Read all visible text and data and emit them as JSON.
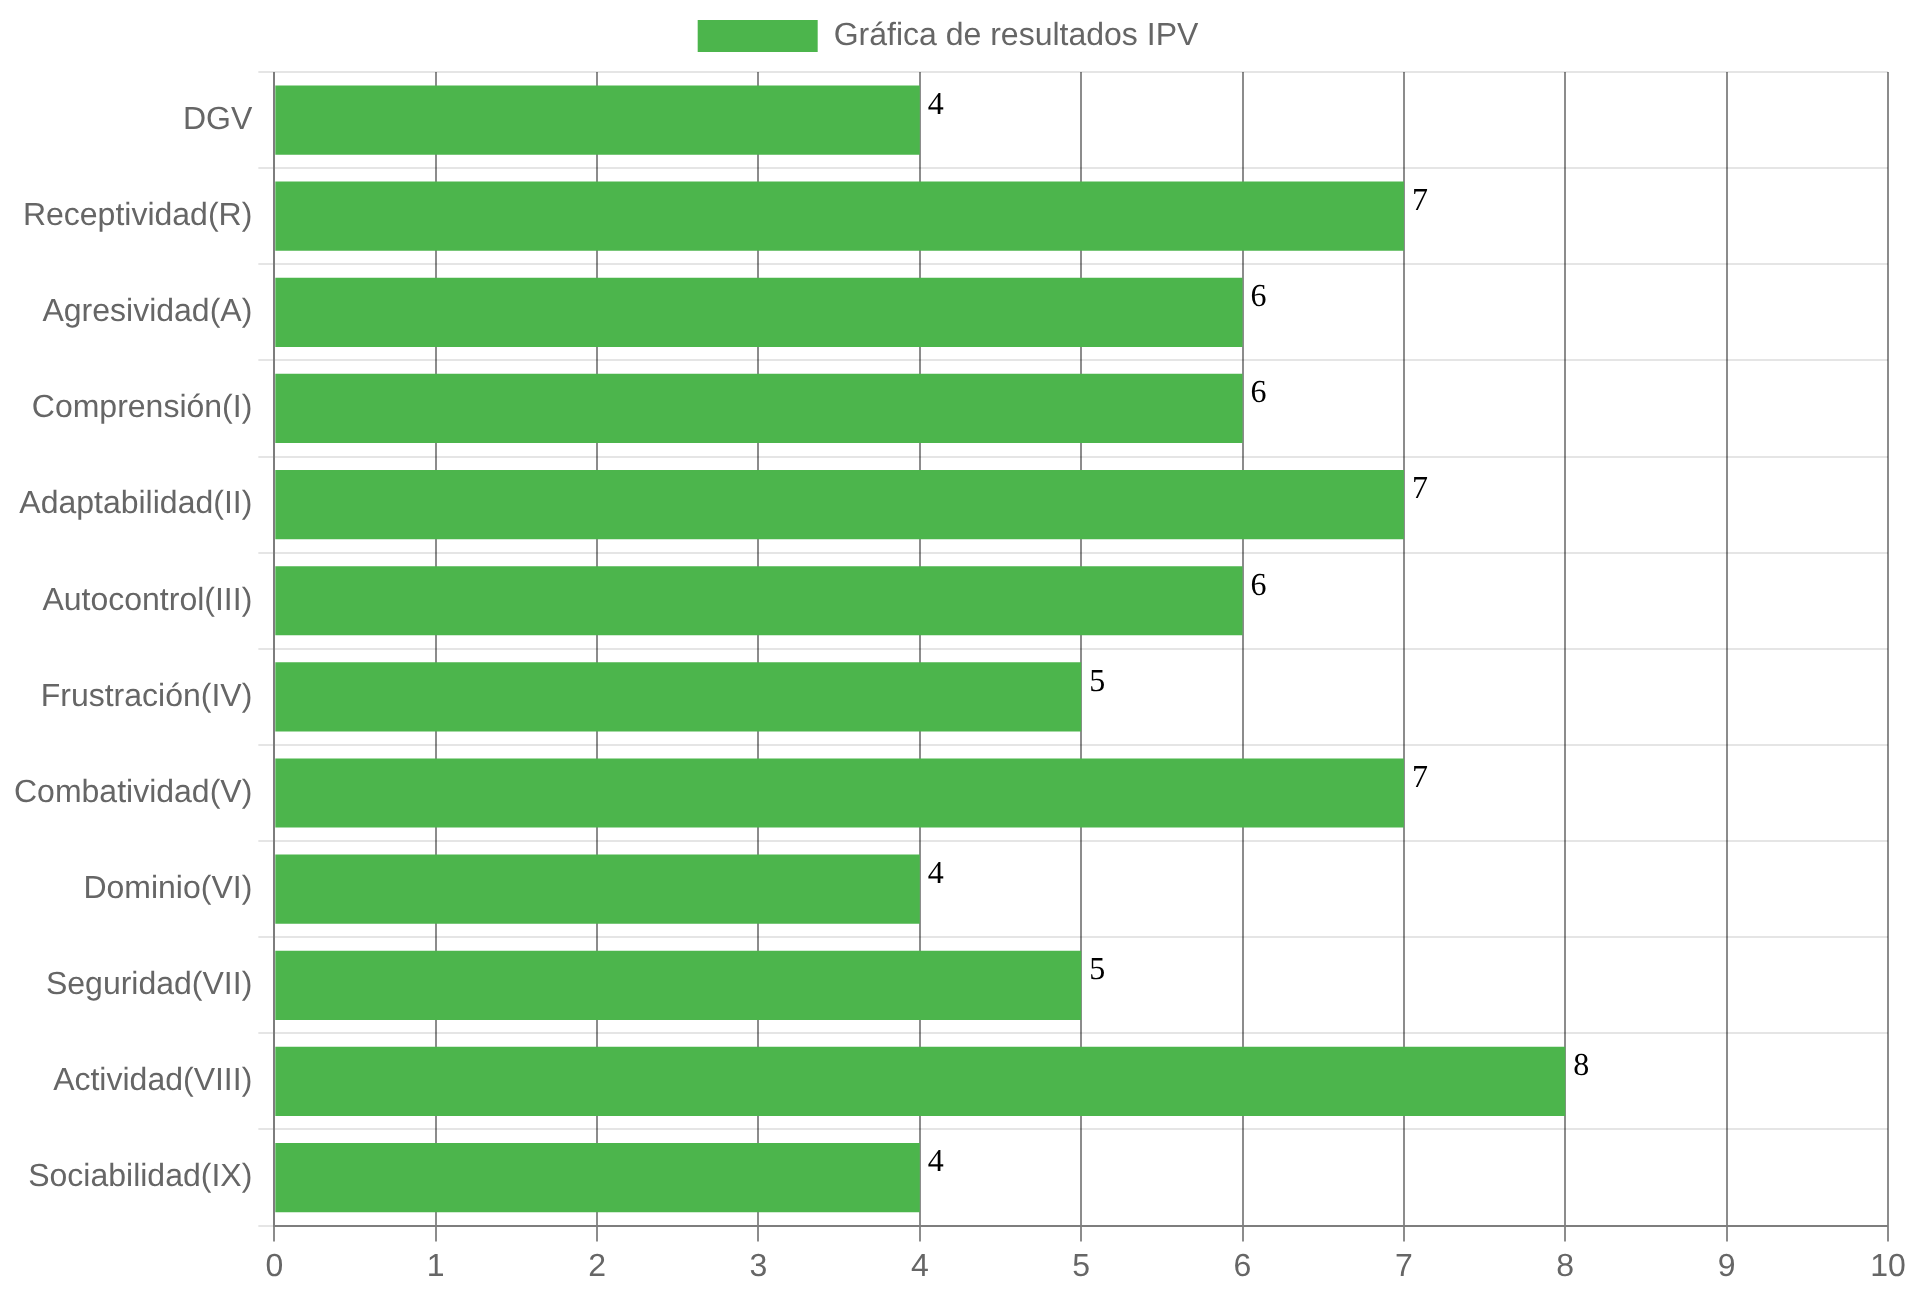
{
  "chart_data": {
    "type": "bar",
    "orientation": "horizontal",
    "categories": [
      "DGV",
      "Receptividad(R)",
      "Agresividad(A)",
      "Comprensión(I)",
      "Adaptabilidad(II)",
      "Autocontrol(III)",
      "Frustración(IV)",
      "Combatividad(V)",
      "Dominio(VI)",
      "Seguridad(VII)",
      "Actividad(VIII)",
      "Sociabilidad(IX)"
    ],
    "series": [
      {
        "name": "Gráfica de resultados IPV",
        "color": "#4cb54c",
        "values": [
          4,
          7,
          6,
          6,
          7,
          6,
          5,
          7,
          4,
          5,
          8,
          4
        ]
      }
    ],
    "xlim": [
      0,
      10
    ],
    "xticks": [
      0,
      1,
      2,
      3,
      4,
      5,
      6,
      7,
      8,
      9,
      10
    ],
    "grid": true,
    "legend": "top",
    "data_labels": true
  }
}
